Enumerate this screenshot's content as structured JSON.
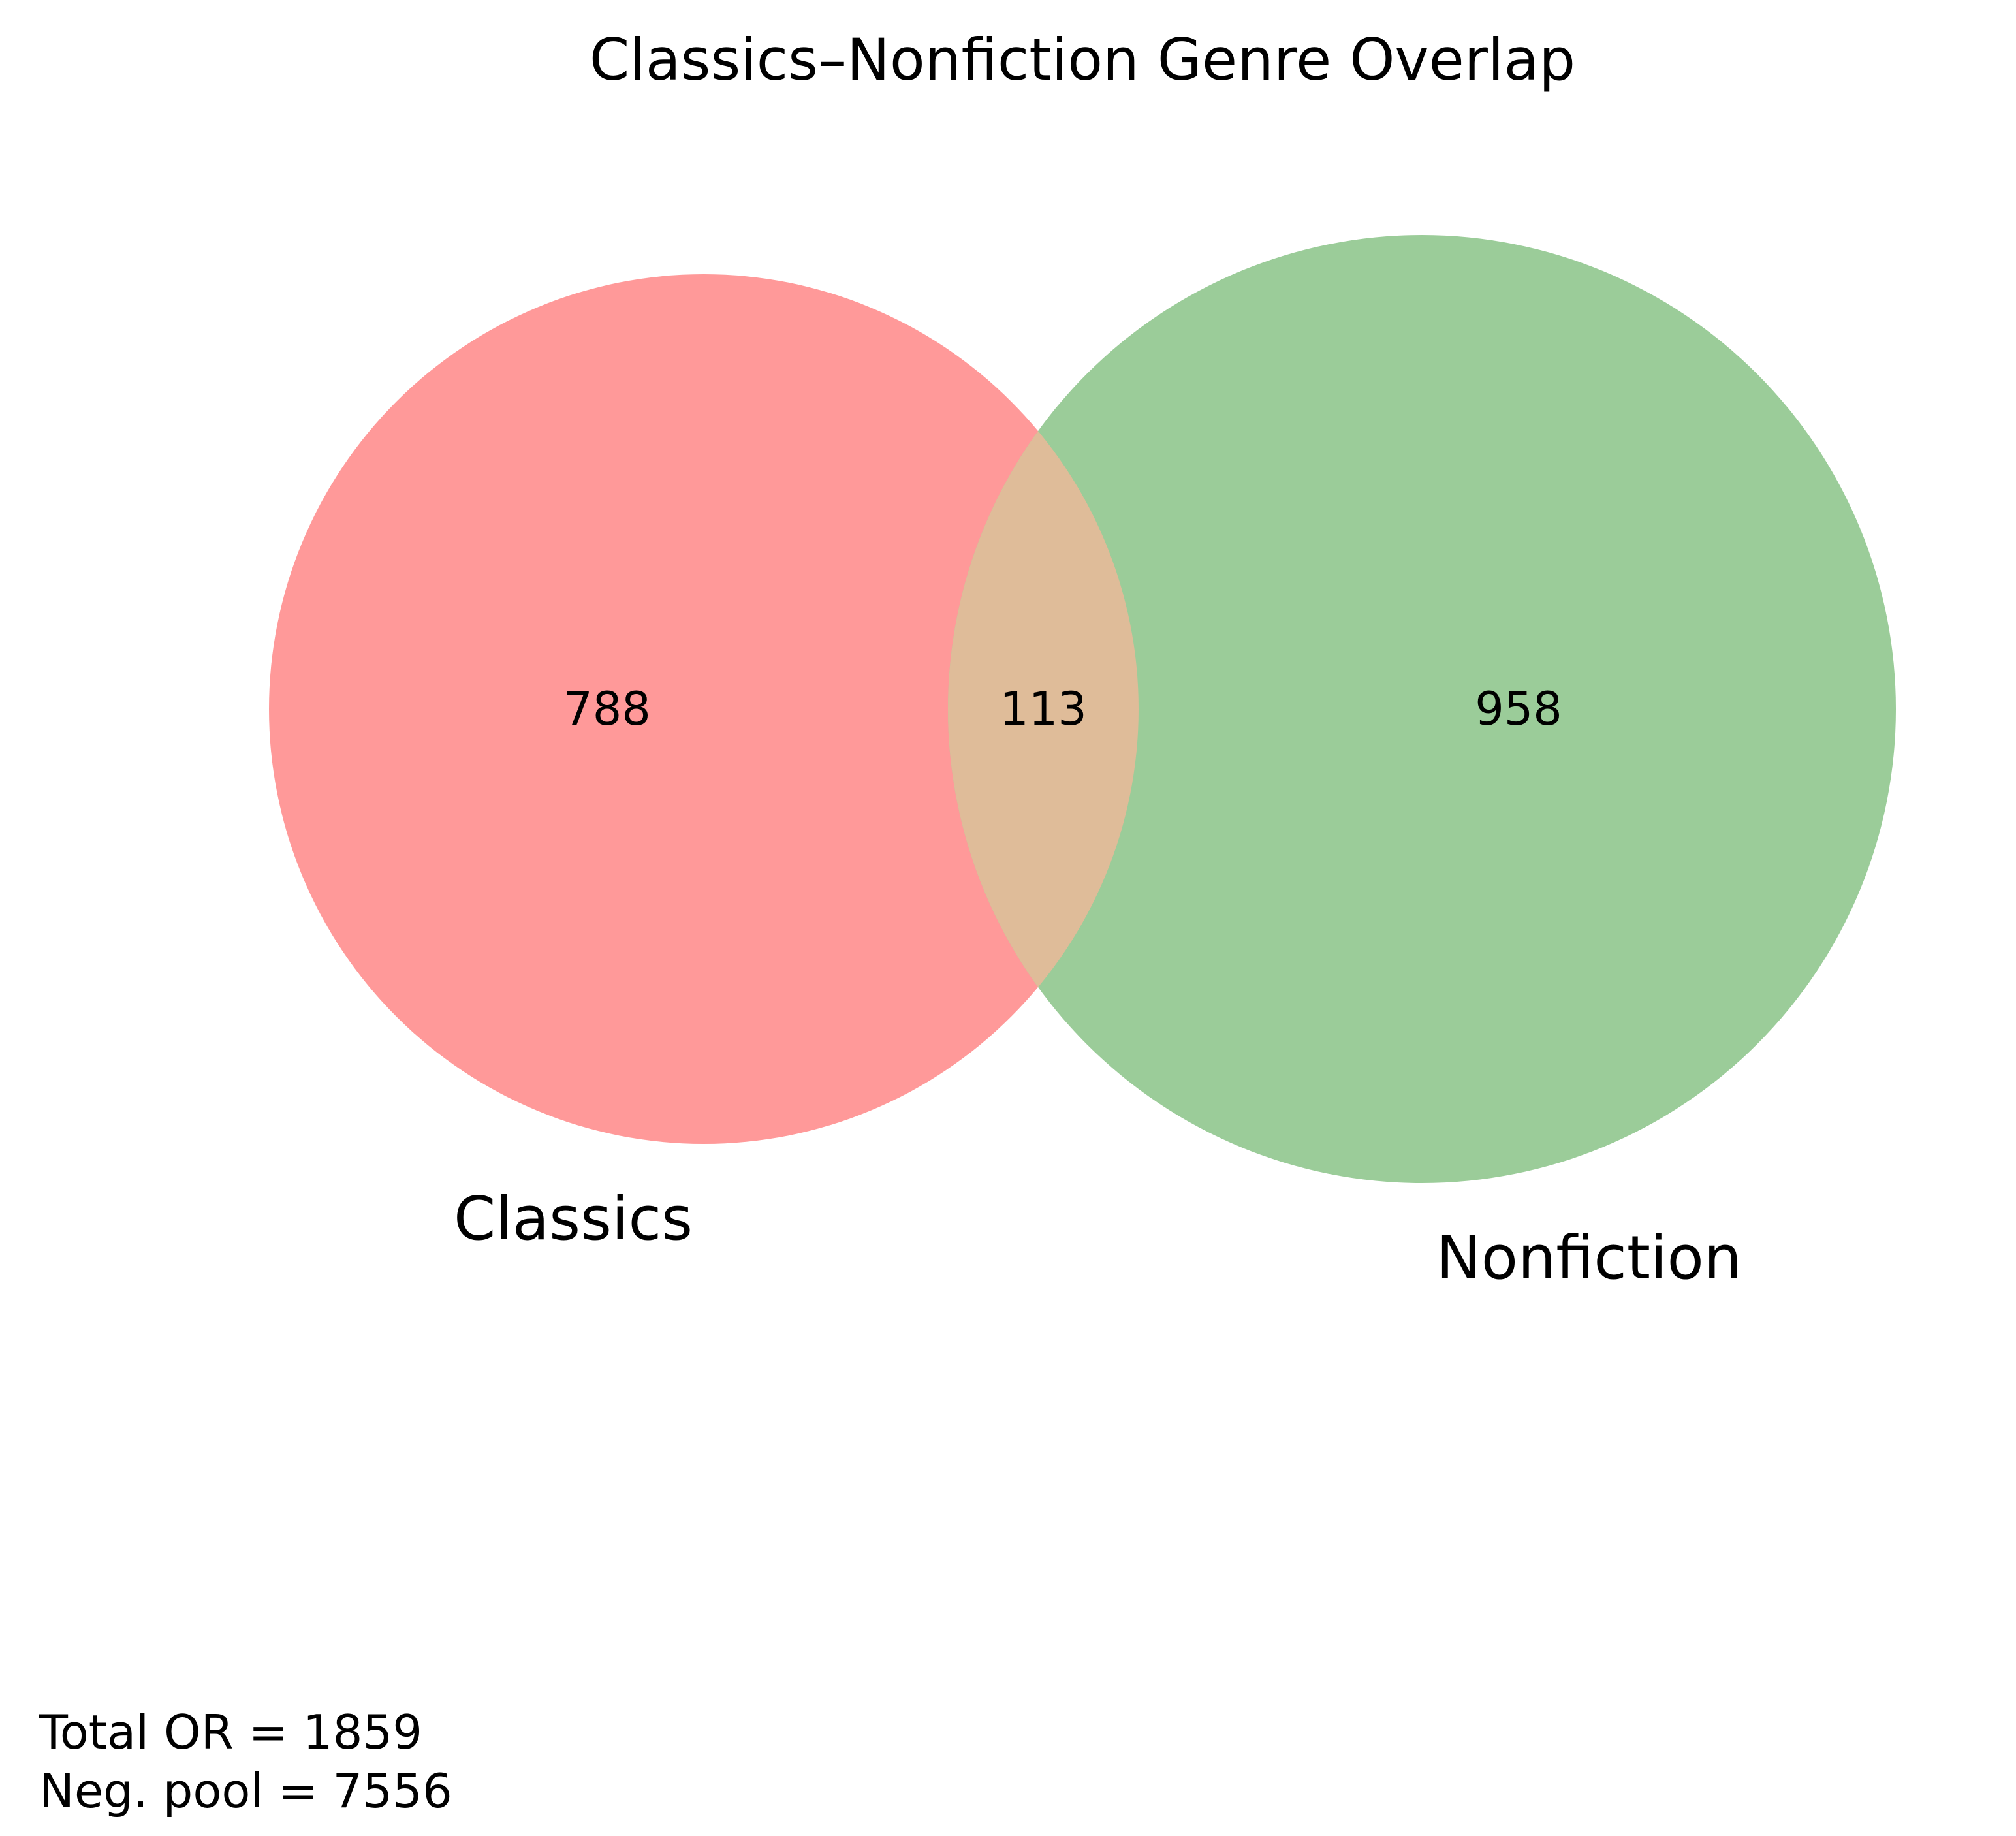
{
  "title": "Classics–Nonfiction Genre Overlap",
  "sets": [
    {
      "name": "Classics",
      "only_count": "788",
      "color": "#ff9999"
    },
    {
      "name": "Nonfiction",
      "only_count": "958",
      "color": "#9bcc99"
    }
  ],
  "intersection": {
    "count": "113",
    "color": "#dfbc99"
  },
  "footer": {
    "total_line": "Total OR = 1859",
    "neg_pool_line": "Neg. pool = 7556"
  }
}
